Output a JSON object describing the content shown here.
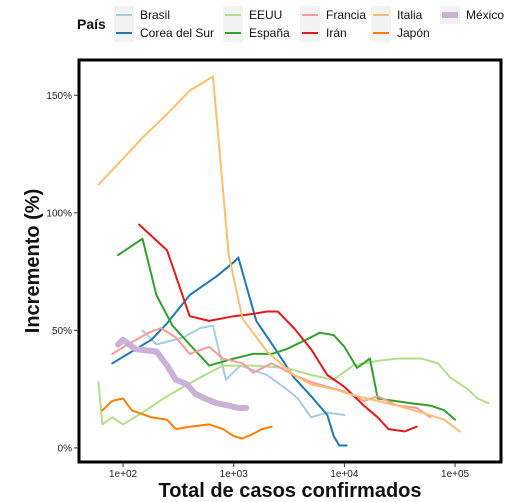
{
  "chart_data": {
    "type": "line",
    "xlabel": "Total de casos confirmados",
    "ylabel": "Incremento (%)",
    "x_scale": "log10",
    "xlim": [
      40,
      260000
    ],
    "ylim": [
      -6,
      165
    ],
    "x_ticks": [
      100,
      1000,
      10000,
      100000
    ],
    "x_tick_labels": [
      "1e+02",
      "1e+03",
      "1e+04",
      "1e+05"
    ],
    "y_ticks": [
      0,
      50,
      100,
      150
    ],
    "y_tick_labels": [
      "0%",
      "50%",
      "100%",
      "150%"
    ],
    "grid": false,
    "legend": {
      "title": "País",
      "position": "top"
    },
    "series": [
      {
        "name": "Brasil",
        "color": "#a6cee3",
        "points": [
          [
            150,
            50
          ],
          [
            200,
            44
          ],
          [
            350,
            47
          ],
          [
            500,
            51
          ],
          [
            650,
            52
          ],
          [
            850,
            29
          ],
          [
            1150,
            35
          ],
          [
            2000,
            31
          ],
          [
            3000,
            25
          ],
          [
            3800,
            21
          ],
          [
            5000,
            13
          ],
          [
            7000,
            15
          ],
          [
            10000,
            14
          ]
        ]
      },
      {
        "name": "Corea del Sur",
        "color": "#1f78b4",
        "points": [
          [
            80,
            36
          ],
          [
            180,
            46
          ],
          [
            250,
            53
          ],
          [
            400,
            65
          ],
          [
            700,
            73
          ],
          [
            1000,
            79
          ],
          [
            1100,
            81
          ],
          [
            1600,
            54
          ],
          [
            2300,
            43
          ],
          [
            3500,
            30
          ],
          [
            5000,
            22
          ],
          [
            7000,
            14
          ],
          [
            8000,
            5
          ],
          [
            9000,
            1
          ],
          [
            10500,
            1
          ]
        ]
      },
      {
        "name": "EEUU",
        "color": "#b2df8a",
        "points": [
          [
            60,
            28
          ],
          [
            65,
            10
          ],
          [
            80,
            13
          ],
          [
            100,
            10
          ],
          [
            150,
            15
          ],
          [
            250,
            22
          ],
          [
            500,
            30
          ],
          [
            800,
            35
          ],
          [
            1500,
            35
          ],
          [
            3000,
            34
          ],
          [
            5000,
            31
          ],
          [
            8000,
            29
          ],
          [
            12000,
            35
          ],
          [
            20000,
            37
          ],
          [
            30000,
            38
          ],
          [
            50000,
            38
          ],
          [
            70000,
            36
          ],
          [
            90000,
            30
          ],
          [
            130000,
            25
          ],
          [
            160000,
            21
          ],
          [
            200000,
            19
          ]
        ]
      },
      {
        "name": "España",
        "color": "#33a02c",
        "points": [
          [
            90,
            82
          ],
          [
            150,
            89
          ],
          [
            200,
            65
          ],
          [
            280,
            52
          ],
          [
            400,
            44
          ],
          [
            600,
            35
          ],
          [
            1000,
            38
          ],
          [
            1500,
            40
          ],
          [
            2200,
            40
          ],
          [
            3000,
            42
          ],
          [
            4500,
            46
          ],
          [
            6000,
            49
          ],
          [
            8000,
            48
          ],
          [
            10000,
            43
          ],
          [
            13000,
            34
          ],
          [
            17000,
            38
          ],
          [
            20000,
            21
          ],
          [
            40000,
            19
          ],
          [
            60000,
            18
          ],
          [
            80000,
            16
          ],
          [
            100000,
            12
          ]
        ]
      },
      {
        "name": "Francia",
        "color": "#fb9a99",
        "points": [
          [
            80,
            40
          ],
          [
            120,
            45
          ],
          [
            170,
            49
          ],
          [
            220,
            51
          ],
          [
            300,
            47
          ],
          [
            400,
            40
          ],
          [
            600,
            43
          ],
          [
            800,
            38
          ],
          [
            1200,
            36
          ],
          [
            1500,
            32
          ],
          [
            2200,
            36
          ],
          [
            3500,
            31
          ],
          [
            5000,
            28
          ],
          [
            7000,
            26
          ],
          [
            10000,
            24
          ],
          [
            15000,
            20
          ],
          [
            20000,
            22
          ],
          [
            30000,
            18
          ],
          [
            45000,
            17
          ],
          [
            60000,
            13
          ]
        ]
      },
      {
        "name": "Irán",
        "color": "#e31a1c",
        "points": [
          [
            140,
            95
          ],
          [
            250,
            84
          ],
          [
            400,
            56
          ],
          [
            600,
            54
          ],
          [
            1000,
            56
          ],
          [
            1500,
            57
          ],
          [
            2000,
            58
          ],
          [
            2500,
            58
          ],
          [
            3500,
            51
          ],
          [
            5000,
            42
          ],
          [
            7000,
            31
          ],
          [
            10000,
            26
          ],
          [
            15000,
            18
          ],
          [
            20000,
            13
          ],
          [
            25000,
            8
          ],
          [
            35000,
            7
          ],
          [
            45000,
            9
          ]
        ]
      },
      {
        "name": "Italia",
        "color": "#fdbf6f",
        "points": [
          [
            60,
            112
          ],
          [
            100,
            123
          ],
          [
            150,
            132
          ],
          [
            250,
            142
          ],
          [
            400,
            152
          ],
          [
            650,
            158
          ],
          [
            900,
            82
          ],
          [
            1200,
            55
          ],
          [
            2000,
            41
          ],
          [
            3500,
            31
          ],
          [
            5000,
            27
          ],
          [
            8000,
            25
          ],
          [
            13000,
            22
          ],
          [
            20000,
            20
          ],
          [
            30000,
            18
          ],
          [
            50000,
            15
          ],
          [
            80000,
            12
          ],
          [
            110000,
            7
          ]
        ]
      },
      {
        "name": "Japón",
        "color": "#ff7f00",
        "points": [
          [
            65,
            16
          ],
          [
            80,
            20
          ],
          [
            100,
            21
          ],
          [
            120,
            16
          ],
          [
            180,
            13
          ],
          [
            250,
            12
          ],
          [
            300,
            8
          ],
          [
            400,
            9
          ],
          [
            600,
            10
          ],
          [
            800,
            8
          ],
          [
            1000,
            5
          ],
          [
            1200,
            4
          ],
          [
            1500,
            6
          ],
          [
            1800,
            8
          ],
          [
            2200,
            9
          ]
        ]
      },
      {
        "name": "México",
        "color": "#cab2d6",
        "points": [
          [
            90,
            44
          ],
          [
            100,
            46
          ],
          [
            130,
            42
          ],
          [
            200,
            41
          ],
          [
            250,
            35
          ],
          [
            300,
            29
          ],
          [
            380,
            27
          ],
          [
            450,
            23
          ],
          [
            550,
            21
          ],
          [
            700,
            19
          ],
          [
            900,
            18
          ],
          [
            1100,
            17
          ],
          [
            1300,
            17
          ]
        ]
      }
    ]
  }
}
